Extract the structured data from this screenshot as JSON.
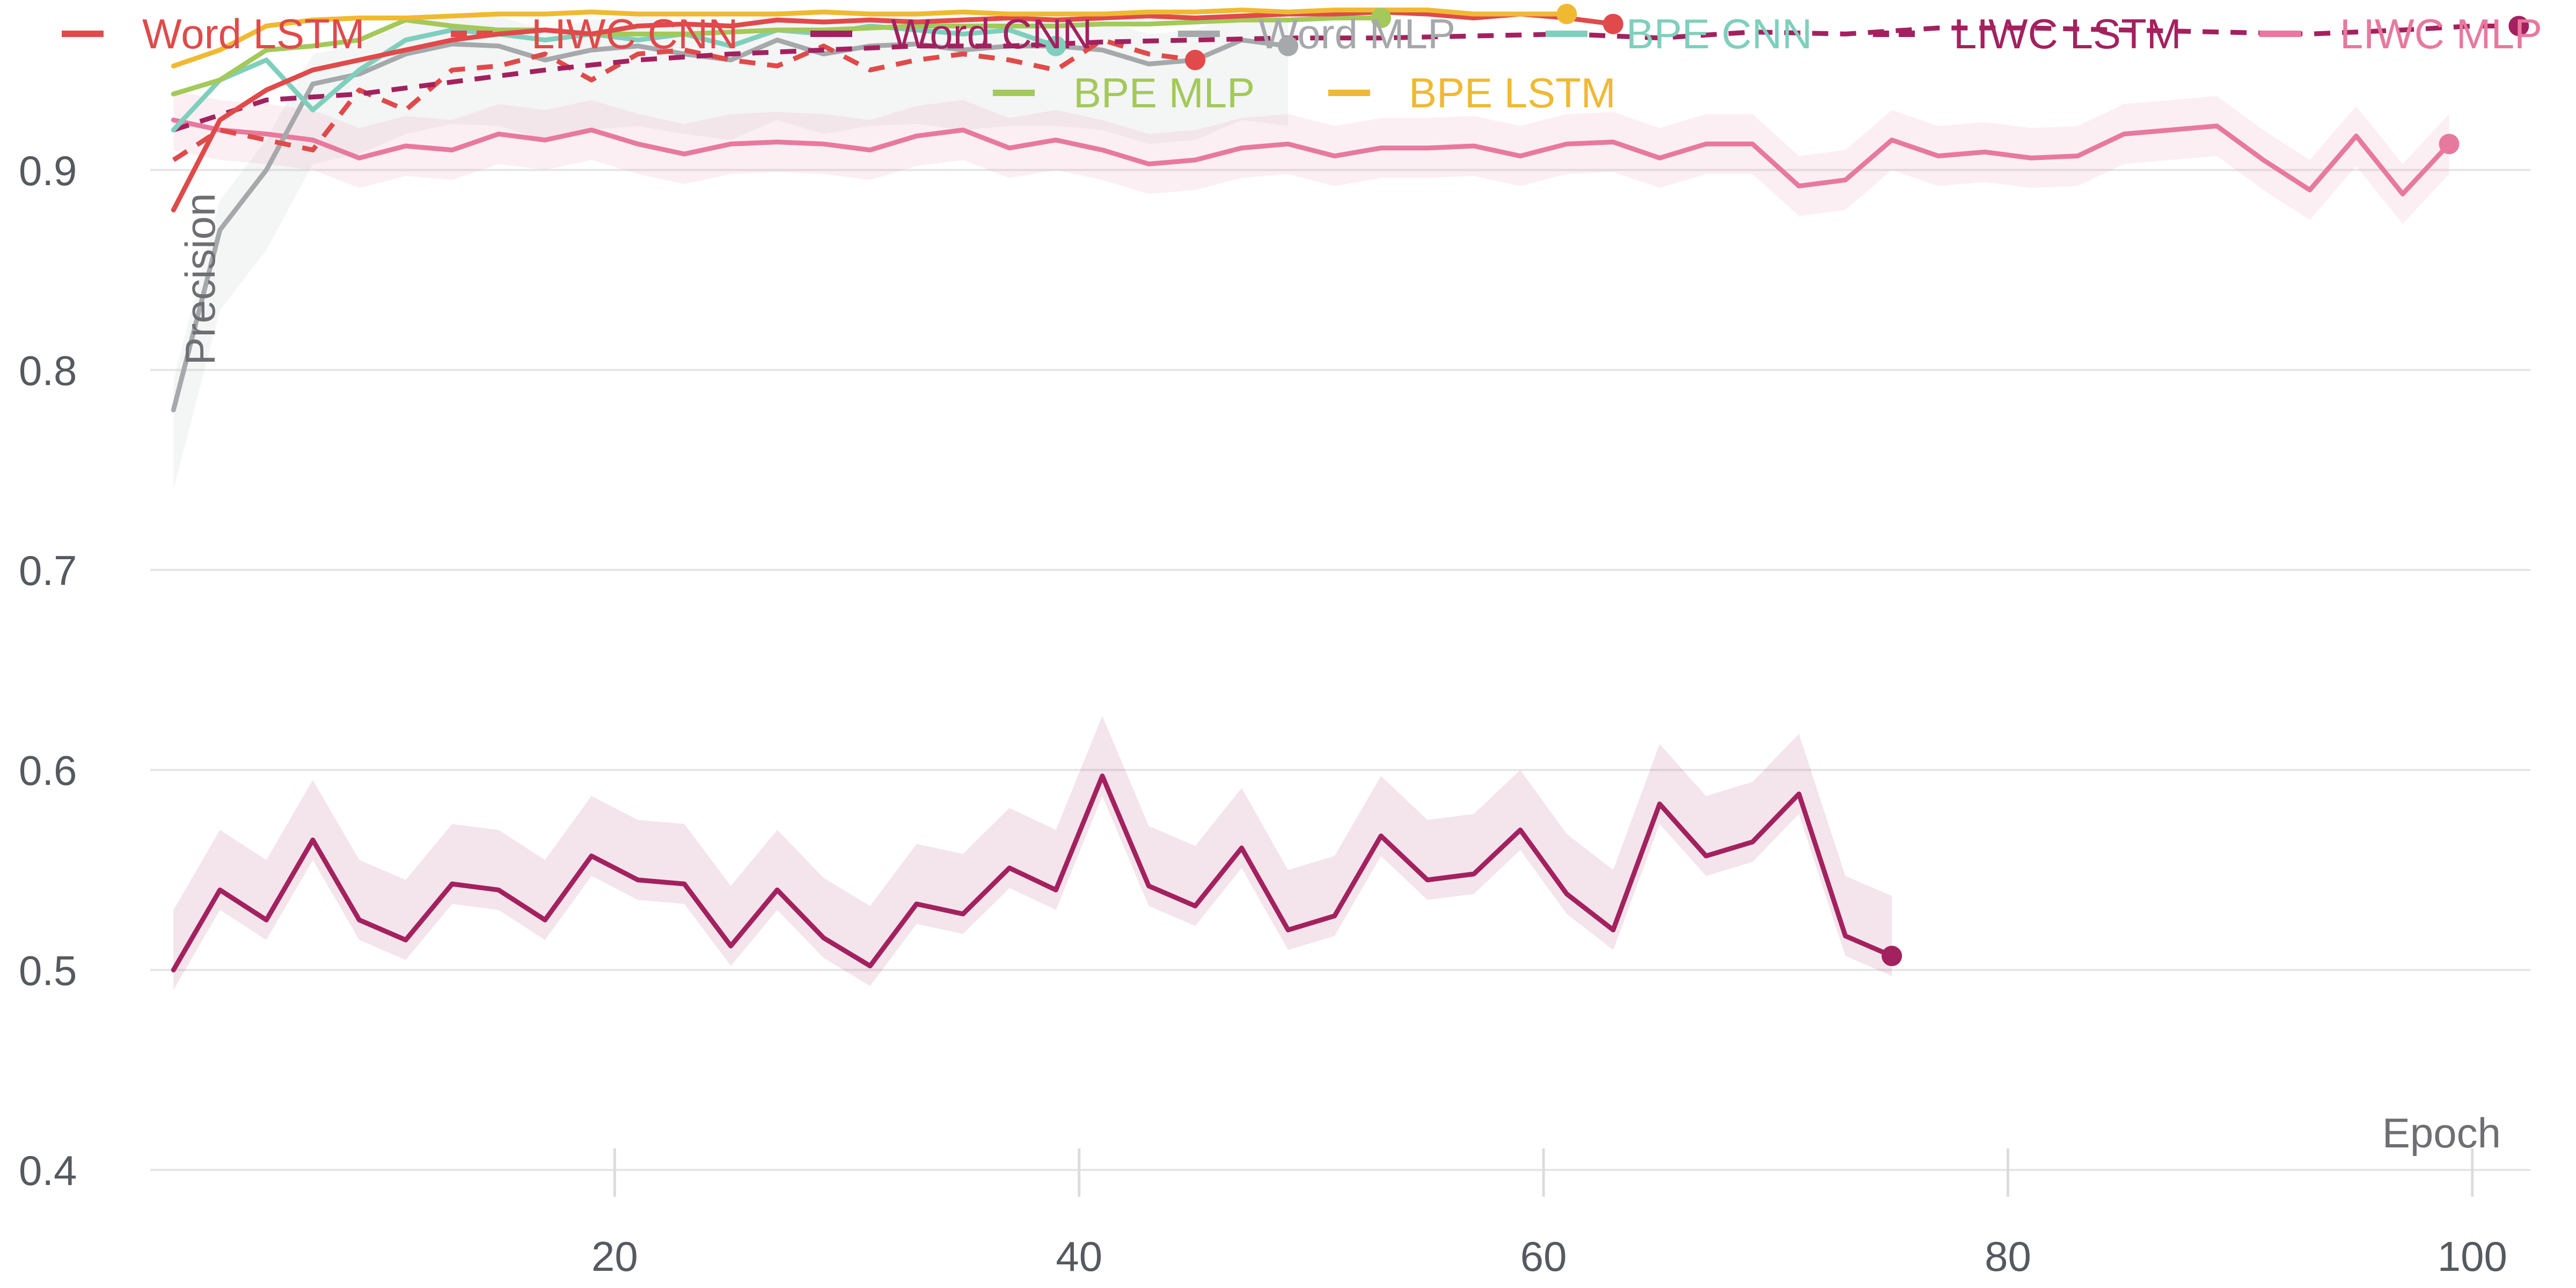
{
  "chart_data": {
    "type": "line",
    "xlabel": "Epoch",
    "ylabel": "Precision",
    "xlim": [
      0,
      102.5
    ],
    "ylim": [
      0.4,
      0.985
    ],
    "x_ticks": [
      20,
      40,
      60,
      80,
      100
    ],
    "y_ticks": [
      0.4,
      0.5,
      0.6,
      0.7,
      0.8,
      0.9
    ],
    "grid": "horizontal",
    "legend_position": "top",
    "series": [
      {
        "name": "Word LSTM",
        "color": "#e04a4a",
        "dash": false,
        "x": [
          1,
          3,
          5,
          7,
          9,
          11,
          13,
          15,
          17,
          19,
          21,
          23,
          25,
          27,
          29,
          31,
          33,
          35,
          37,
          39,
          41,
          43,
          45,
          47,
          49,
          51,
          53,
          55,
          57,
          59,
          61,
          63
        ],
        "y": [
          0.88,
          0.925,
          0.94,
          0.95,
          0.955,
          0.96,
          0.965,
          0.968,
          0.97,
          0.968,
          0.972,
          0.973,
          0.972,
          0.975,
          0.974,
          0.975,
          0.974,
          0.975,
          0.976,
          0.975,
          0.976,
          0.977,
          0.976,
          0.977,
          0.978,
          0.978,
          0.979,
          0.978,
          0.976,
          0.978,
          0.976,
          0.973
        ]
      },
      {
        "name": "LIWC CNN",
        "color": "#e04a4a",
        "dash": true,
        "x": [
          1,
          3,
          5,
          7,
          9,
          11,
          13,
          15,
          17,
          19,
          21,
          23,
          25,
          27,
          29,
          31,
          33,
          35,
          37,
          39,
          41,
          43,
          45
        ],
        "y": [
          0.905,
          0.92,
          0.915,
          0.91,
          0.94,
          0.93,
          0.95,
          0.952,
          0.958,
          0.945,
          0.958,
          0.96,
          0.955,
          0.952,
          0.962,
          0.95,
          0.955,
          0.958,
          0.955,
          0.95,
          0.965,
          0.958,
          0.955
        ]
      },
      {
        "name": "Word CNN",
        "color": "#a3215f",
        "dash": false,
        "band": [
          0.01,
          0.03
        ],
        "x": [
          1,
          3,
          5,
          7,
          9,
          11,
          13,
          15,
          17,
          19,
          21,
          23,
          25,
          27,
          29,
          31,
          33,
          35,
          37,
          39,
          41,
          43,
          45,
          47,
          49,
          51,
          53,
          55,
          57,
          59,
          61,
          63,
          65,
          67,
          69,
          71,
          73,
          75
        ],
        "y": [
          0.5,
          0.54,
          0.525,
          0.565,
          0.525,
          0.515,
          0.543,
          0.54,
          0.525,
          0.557,
          0.545,
          0.543,
          0.512,
          0.54,
          0.516,
          0.502,
          0.533,
          0.528,
          0.551,
          0.54,
          0.597,
          0.542,
          0.532,
          0.561,
          0.52,
          0.527,
          0.567,
          0.545,
          0.548,
          0.57,
          0.538,
          0.52,
          0.583,
          0.557,
          0.564,
          0.588,
          0.517,
          0.507
        ]
      },
      {
        "name": "Word MLP",
        "color": "#a6a9ac",
        "dash": false,
        "band": [
          0.04,
          0.015
        ],
        "x": [
          1,
          3,
          5,
          7,
          9,
          11,
          13,
          15,
          17,
          19,
          21,
          23,
          25,
          27,
          29,
          31,
          33,
          35,
          37,
          39,
          41,
          43,
          45,
          47,
          49
        ],
        "y": [
          0.78,
          0.87,
          0.9,
          0.943,
          0.948,
          0.958,
          0.963,
          0.962,
          0.955,
          0.96,
          0.962,
          0.958,
          0.955,
          0.965,
          0.958,
          0.962,
          0.963,
          0.96,
          0.962,
          0.962,
          0.96,
          0.953,
          0.955,
          0.965,
          0.962
        ]
      },
      {
        "name": "BPE CNN",
        "color": "#7fcfbd",
        "dash": false,
        "x": [
          1,
          3,
          5,
          7,
          9,
          11,
          13,
          15,
          17,
          19,
          21,
          23,
          25,
          27,
          29,
          31,
          33,
          35,
          37,
          39
        ],
        "y": [
          0.92,
          0.945,
          0.955,
          0.93,
          0.95,
          0.965,
          0.97,
          0.968,
          0.965,
          0.968,
          0.965,
          0.968,
          0.962,
          0.97,
          0.968,
          0.972,
          0.97,
          0.968,
          0.97,
          0.962
        ]
      },
      {
        "name": "LIWC LSTM",
        "color": "#a3215f",
        "dash": true,
        "x": [
          1,
          5,
          9,
          13,
          17,
          21,
          25,
          29,
          33,
          37,
          41,
          45,
          49,
          53,
          57,
          61,
          65,
          69,
          73,
          77,
          81,
          85,
          89,
          93,
          97,
          100,
          102
        ],
        "y": [
          0.92,
          0.935,
          0.938,
          0.944,
          0.95,
          0.955,
          0.958,
          0.96,
          0.962,
          0.962,
          0.964,
          0.965,
          0.966,
          0.966,
          0.967,
          0.968,
          0.966,
          0.969,
          0.968,
          0.971,
          0.971,
          0.97,
          0.969,
          0.968,
          0.97,
          0.972,
          0.972
        ]
      },
      {
        "name": "LIWC MLP",
        "color": "#e8799e",
        "dash": false,
        "band": [
          0.015,
          0.015
        ],
        "x": [
          1,
          3,
          5,
          7,
          9,
          11,
          13,
          15,
          17,
          19,
          21,
          23,
          25,
          27,
          29,
          31,
          33,
          35,
          37,
          39,
          41,
          43,
          45,
          47,
          49,
          51,
          53,
          55,
          57,
          59,
          61,
          63,
          65,
          67,
          69,
          71,
          73,
          75,
          77,
          79,
          81,
          83,
          85,
          87,
          89,
          91,
          93,
          95,
          97,
          99
        ],
        "y": [
          0.925,
          0.92,
          0.918,
          0.915,
          0.906,
          0.912,
          0.91,
          0.918,
          0.915,
          0.92,
          0.913,
          0.908,
          0.913,
          0.914,
          0.913,
          0.91,
          0.917,
          0.92,
          0.911,
          0.915,
          0.91,
          0.903,
          0.905,
          0.911,
          0.913,
          0.907,
          0.911,
          0.911,
          0.912,
          0.907,
          0.913,
          0.914,
          0.906,
          0.913,
          0.913,
          0.892,
          0.895,
          0.915,
          0.907,
          0.909,
          0.906,
          0.907,
          0.918,
          0.92,
          0.922,
          0.905,
          0.89,
          0.917,
          0.888,
          0.913
        ]
      },
      {
        "name": "BPE MLP",
        "color": "#a3c95a",
        "dash": false,
        "x": [
          1,
          3,
          5,
          7,
          9,
          11,
          13,
          15,
          17,
          19,
          21,
          23,
          25,
          27,
          29,
          31,
          33,
          35,
          37,
          39,
          41,
          43,
          45,
          47,
          49,
          51,
          53
        ],
        "y": [
          0.938,
          0.945,
          0.96,
          0.962,
          0.965,
          0.975,
          0.972,
          0.97,
          0.97,
          0.968,
          0.968,
          0.968,
          0.969,
          0.97,
          0.97,
          0.971,
          0.972,
          0.972,
          0.972,
          0.972,
          0.973,
          0.973,
          0.974,
          0.975,
          0.975,
          0.976,
          0.976
        ]
      },
      {
        "name": "BPE LSTM",
        "color": "#f0b932",
        "dash": false,
        "x": [
          1,
          3,
          5,
          7,
          9,
          11,
          13,
          15,
          17,
          19,
          21,
          23,
          25,
          27,
          29,
          31,
          33,
          35,
          37,
          39,
          41,
          43,
          45,
          47,
          49,
          51,
          53,
          55,
          57,
          59,
          61
        ],
        "y": [
          0.952,
          0.96,
          0.972,
          0.975,
          0.976,
          0.976,
          0.977,
          0.978,
          0.978,
          0.979,
          0.978,
          0.978,
          0.978,
          0.978,
          0.979,
          0.978,
          0.978,
          0.979,
          0.978,
          0.978,
          0.978,
          0.979,
          0.979,
          0.98,
          0.979,
          0.98,
          0.98,
          0.98,
          0.978,
          0.978,
          0.978
        ]
      }
    ]
  }
}
